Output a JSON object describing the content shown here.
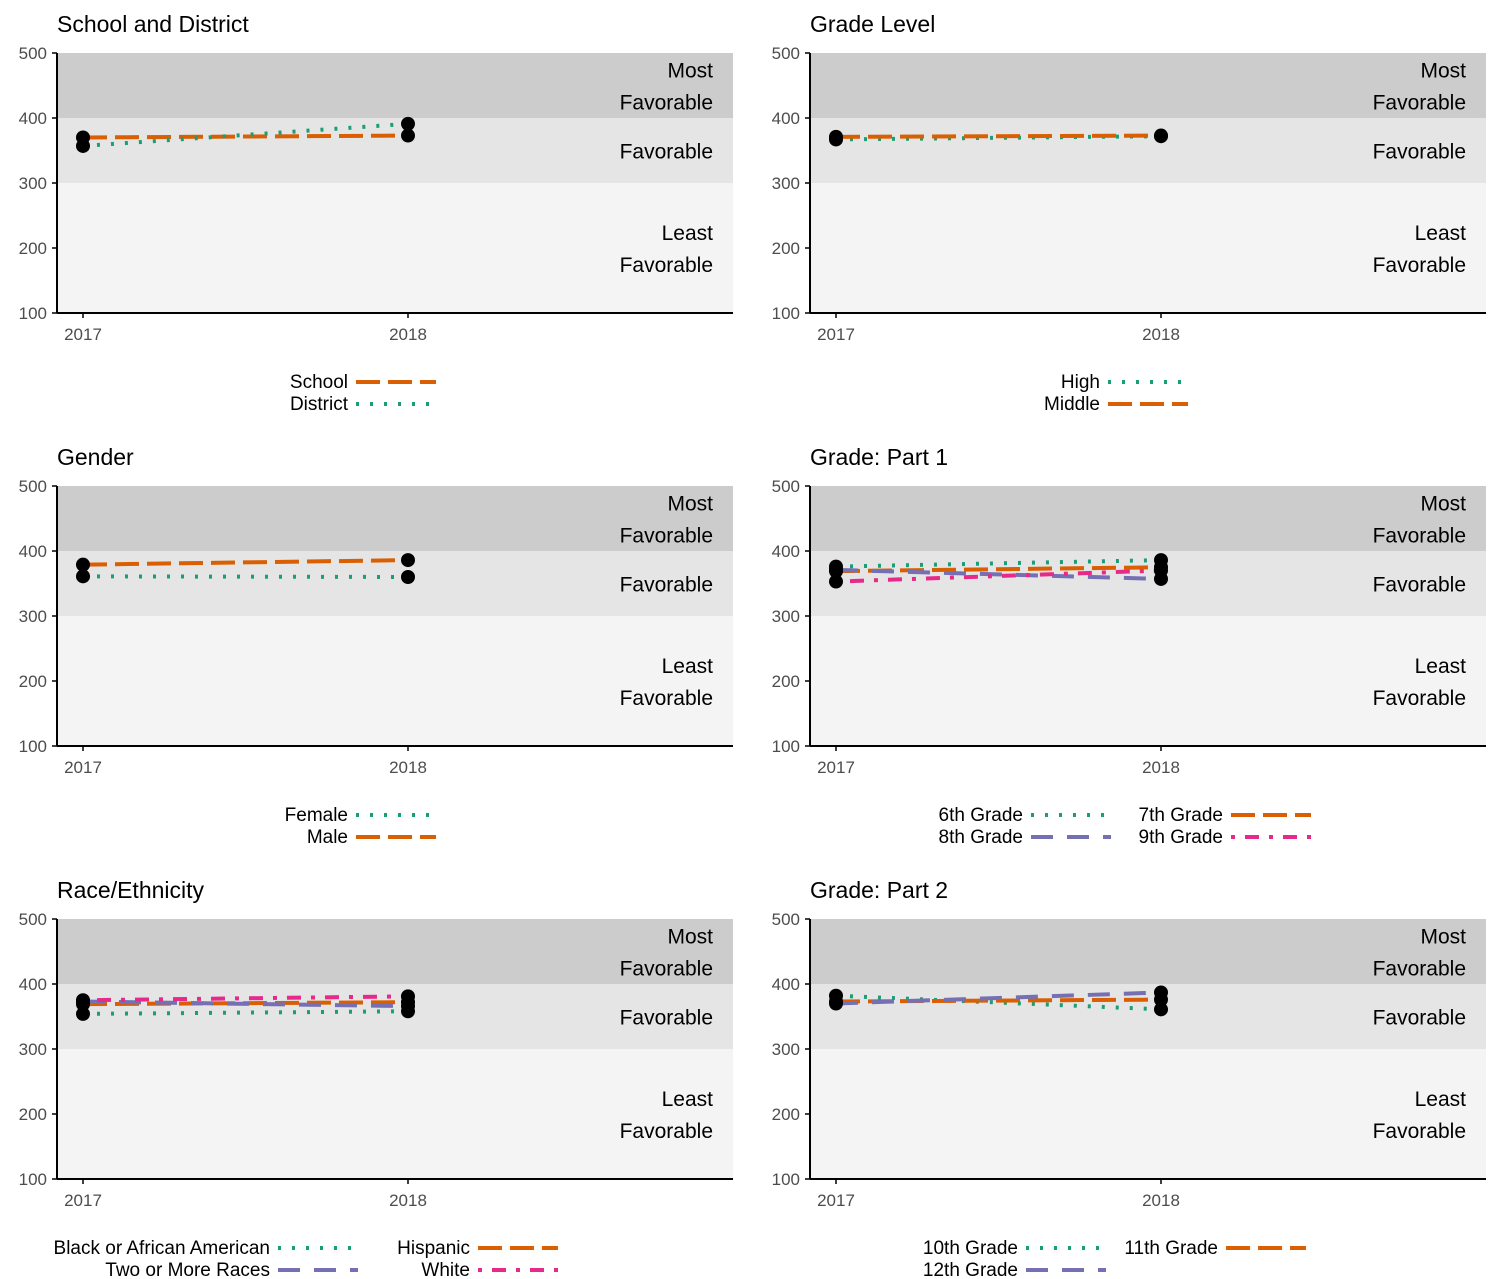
{
  "colors": {
    "band_most": "#cccccc",
    "band_fav": "#e5e5e5",
    "band_least": "#f4f4f4",
    "green": "#1b9e77",
    "orange": "#d95f02",
    "purple": "#7570b3",
    "pink": "#e7298a",
    "point": "#000000",
    "axis": "#000000",
    "text": "#000000",
    "tick_text": "#4d4d4d"
  },
  "bands": [
    {
      "from": 400,
      "to": 500,
      "label_lines": [
        "Most",
        "Favorable"
      ],
      "color_key": "band_most"
    },
    {
      "from": 300,
      "to": 400,
      "label_lines": [
        "Favorable"
      ],
      "color_key": "band_fav"
    },
    {
      "from": 100,
      "to": 300,
      "label_lines": [
        "Least",
        "Favorable"
      ],
      "color_key": "band_least"
    }
  ],
  "chart_data": [
    {
      "type": "line",
      "title": "School and District",
      "x": [
        "2017",
        "2018"
      ],
      "xlim": [
        2016.92,
        2019.0
      ],
      "ylim": [
        100,
        500
      ],
      "yticks": [
        100,
        200,
        300,
        400,
        500
      ],
      "grid": false,
      "legend_position": "bottom",
      "series": [
        {
          "name": "School",
          "values": [
            370,
            373
          ],
          "color_key": "orange",
          "dash": "longdash"
        },
        {
          "name": "District",
          "values": [
            357,
            391
          ],
          "color_key": "green",
          "dash": "dotted"
        }
      ]
    },
    {
      "type": "line",
      "title": "Grade Level",
      "x": [
        "2017",
        "2018"
      ],
      "xlim": [
        2016.92,
        2019.0
      ],
      "ylim": [
        100,
        500
      ],
      "yticks": [
        100,
        200,
        300,
        400,
        500
      ],
      "grid": false,
      "legend_position": "bottom",
      "series": [
        {
          "name": "High",
          "values": [
            367,
            372
          ],
          "color_key": "green",
          "dash": "dotted"
        },
        {
          "name": "Middle",
          "values": [
            371,
            373
          ],
          "color_key": "orange",
          "dash": "longdash"
        }
      ]
    },
    {
      "type": "line",
      "title": "Gender",
      "x": [
        "2017",
        "2018"
      ],
      "xlim": [
        2016.92,
        2019.0
      ],
      "ylim": [
        100,
        500
      ],
      "yticks": [
        100,
        200,
        300,
        400,
        500
      ],
      "grid": false,
      "legend_position": "bottom",
      "series": [
        {
          "name": "Female",
          "values": [
            361,
            360
          ],
          "color_key": "green",
          "dash": "dotted"
        },
        {
          "name": "Male",
          "values": [
            379,
            386
          ],
          "color_key": "orange",
          "dash": "longdash"
        }
      ]
    },
    {
      "type": "line",
      "title": "Grade: Part 1",
      "x": [
        "2017",
        "2018"
      ],
      "xlim": [
        2016.92,
        2019.0
      ],
      "ylim": [
        100,
        500
      ],
      "yticks": [
        100,
        200,
        300,
        400,
        500
      ],
      "grid": false,
      "legend_position": "bottom",
      "series": [
        {
          "name": "6th Grade",
          "values": [
            376,
            386
          ],
          "color_key": "green",
          "dash": "dotted"
        },
        {
          "name": "7th Grade",
          "values": [
            369,
            375
          ],
          "color_key": "orange",
          "dash": "longdash"
        },
        {
          "name": "8th Grade",
          "values": [
            371,
            357
          ],
          "color_key": "purple",
          "dash": "dashed"
        },
        {
          "name": "9th Grade",
          "values": [
            353,
            370
          ],
          "color_key": "pink",
          "dash": "dotdash"
        }
      ]
    },
    {
      "type": "line",
      "title": "Race/Ethnicity",
      "x": [
        "2017",
        "2018"
      ],
      "xlim": [
        2016.92,
        2019.0
      ],
      "ylim": [
        100,
        500
      ],
      "yticks": [
        100,
        200,
        300,
        400,
        500
      ],
      "grid": false,
      "legend_position": "bottom",
      "series": [
        {
          "name": "Black or African American",
          "values": [
            354,
            358
          ],
          "color_key": "green",
          "dash": "dotted"
        },
        {
          "name": "Hispanic",
          "values": [
            369,
            372
          ],
          "color_key": "orange",
          "dash": "longdash"
        },
        {
          "name": "Two or More Races",
          "values": [
            373,
            366
          ],
          "color_key": "purple",
          "dash": "dashed"
        },
        {
          "name": "White",
          "values": [
            375,
            381
          ],
          "color_key": "pink",
          "dash": "dotdash"
        }
      ]
    },
    {
      "type": "line",
      "title": "Grade: Part 2",
      "x": [
        "2017",
        "2018"
      ],
      "xlim": [
        2016.92,
        2019.0
      ],
      "ylim": [
        100,
        500
      ],
      "yticks": [
        100,
        200,
        300,
        400,
        500
      ],
      "grid": false,
      "legend_position": "bottom",
      "series": [
        {
          "name": "10th Grade",
          "values": [
            382,
            361
          ],
          "color_key": "green",
          "dash": "dotted"
        },
        {
          "name": "11th Grade",
          "values": [
            373,
            376
          ],
          "color_key": "orange",
          "dash": "longdash"
        },
        {
          "name": "12th Grade",
          "values": [
            370,
            387
          ],
          "color_key": "purple",
          "dash": "dashed"
        }
      ]
    }
  ]
}
